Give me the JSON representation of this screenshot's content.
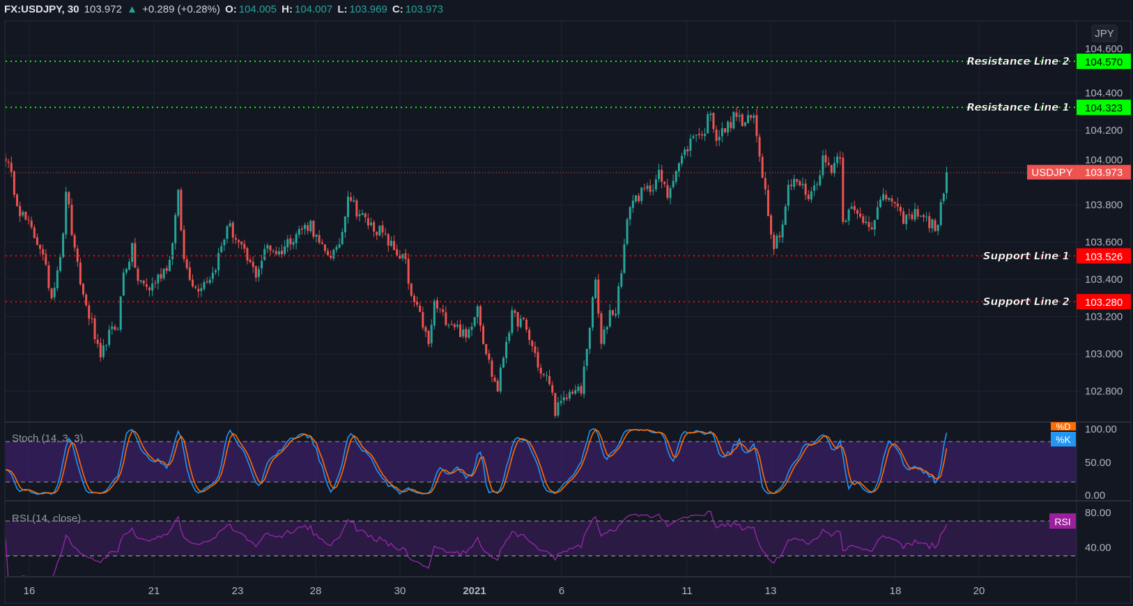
{
  "header": {
    "symbol": "FX:USDJPY, 30",
    "last": "103.972",
    "change": "+0.289 (+0.28%)",
    "o_label": "O:",
    "o": "104.005",
    "h_label": "H:",
    "h": "104.007",
    "l_label": "L:",
    "l": "103.969",
    "c_label": "C:",
    "c": "103.973"
  },
  "currency_button": "JPY",
  "colors": {
    "background": "#131722",
    "up": "#26a69a",
    "down": "#ef5350",
    "resistance": "#00ff00",
    "support": "#ff0000",
    "stoch_k": "#2196f3",
    "stoch_d": "#ff6d00",
    "rsi": "#9c27b0"
  },
  "levels": [
    {
      "label": "Resistance Line 2",
      "value": 104.57,
      "text": "104.570",
      "kind": "resistance"
    },
    {
      "label": "Resistance Line 1",
      "value": 104.323,
      "text": "104.323",
      "kind": "resistance"
    },
    {
      "label": "Support Line 1",
      "value": 103.526,
      "text": "103.526",
      "kind": "support"
    },
    {
      "label": "Support Line 2",
      "value": 103.28,
      "text": "103.280",
      "kind": "support"
    }
  ],
  "last_price_label": {
    "symbol": "USDJPY",
    "value": 103.973,
    "text": "103.973"
  },
  "indicators": {
    "stoch": {
      "title": "Stoch (14, 3, 3)",
      "k_label": "%K",
      "d_label": "%D",
      "ticks": [
        "100.00",
        "50.00",
        "0.00"
      ],
      "upper": 80,
      "lower": 20
    },
    "rsi": {
      "title": "RSI (14, close)",
      "label": "RSI",
      "ticks": [
        "80.00",
        "40.00"
      ],
      "upper": 70,
      "lower": 30
    }
  },
  "chart_data": {
    "type": "candlestick",
    "title": "FX:USDJPY, 30",
    "price_ticks": [
      "104.600",
      "104.400",
      "104.200",
      "104.000",
      "103.800",
      "103.600",
      "103.400",
      "103.200",
      "103.000",
      "102.800"
    ],
    "ylim": [
      102.63,
      104.78
    ],
    "x_tick_labels": [
      "16",
      "21",
      "23",
      "28",
      "30",
      "2021",
      "6",
      "11",
      "13",
      "18",
      "20"
    ],
    "last_close": 103.973,
    "price_keypoints": [
      [
        0,
        104.06
      ],
      [
        5,
        103.77
      ],
      [
        9,
        103.66
      ],
      [
        12,
        103.58
      ],
      [
        16,
        103.31
      ],
      [
        20,
        103.62
      ],
      [
        21,
        103.89
      ],
      [
        24,
        103.54
      ],
      [
        27,
        103.31
      ],
      [
        30,
        103.16
      ],
      [
        33,
        102.95
      ],
      [
        35,
        103.08
      ],
      [
        39,
        103.16
      ],
      [
        41,
        103.43
      ],
      [
        44,
        103.56
      ],
      [
        46,
        103.39
      ],
      [
        50,
        103.35
      ],
      [
        54,
        103.43
      ],
      [
        57,
        103.5
      ],
      [
        60,
        103.85
      ],
      [
        62,
        103.5
      ],
      [
        66,
        103.35
      ],
      [
        69,
        103.39
      ],
      [
        72,
        103.43
      ],
      [
        76,
        103.62
      ],
      [
        77,
        103.7
      ],
      [
        80,
        103.62
      ],
      [
        84,
        103.5
      ],
      [
        87,
        103.43
      ],
      [
        91,
        103.58
      ],
      [
        95,
        103.54
      ],
      [
        99,
        103.62
      ],
      [
        102,
        103.66
      ],
      [
        106,
        103.7
      ],
      [
        109,
        103.58
      ],
      [
        111,
        103.54
      ],
      [
        115,
        103.54
      ],
      [
        117,
        103.66
      ],
      [
        119,
        103.87
      ],
      [
        122,
        103.77
      ],
      [
        126,
        103.7
      ],
      [
        130,
        103.66
      ],
      [
        132,
        103.62
      ],
      [
        136,
        103.54
      ],
      [
        139,
        103.5
      ],
      [
        140,
        103.35
      ],
      [
        142,
        103.27
      ],
      [
        145,
        103.16
      ],
      [
        147,
        103.04
      ],
      [
        149,
        103.27
      ],
      [
        152,
        103.2
      ],
      [
        156,
        103.16
      ],
      [
        160,
        103.08
      ],
      [
        164,
        103.27
      ],
      [
        166,
        103.08
      ],
      [
        169,
        102.89
      ],
      [
        171,
        102.81
      ],
      [
        174,
        103.08
      ],
      [
        176,
        103.2
      ],
      [
        180,
        103.16
      ],
      [
        184,
        103.0
      ],
      [
        186,
        102.89
      ],
      [
        189,
        102.85
      ],
      [
        191,
        102.7
      ],
      [
        194,
        102.74
      ],
      [
        197,
        102.81
      ],
      [
        200,
        102.79
      ],
      [
        202,
        103.04
      ],
      [
        205,
        103.39
      ],
      [
        207,
        103.04
      ],
      [
        210,
        103.23
      ],
      [
        212,
        103.23
      ],
      [
        215,
        103.58
      ],
      [
        217,
        103.81
      ],
      [
        220,
        103.85
      ],
      [
        224,
        103.89
      ],
      [
        227,
        103.96
      ],
      [
        230,
        103.85
      ],
      [
        232,
        103.96
      ],
      [
        236,
        104.08
      ],
      [
        240,
        104.2
      ],
      [
        242,
        104.16
      ],
      [
        245,
        104.31
      ],
      [
        247,
        104.16
      ],
      [
        250,
        104.2
      ],
      [
        254,
        104.29
      ],
      [
        256,
        104.23
      ],
      [
        260,
        104.27
      ],
      [
        262,
        104.08
      ],
      [
        265,
        103.77
      ],
      [
        267,
        103.58
      ],
      [
        270,
        103.7
      ],
      [
        272,
        103.89
      ],
      [
        275,
        103.93
      ],
      [
        279,
        103.85
      ],
      [
        281,
        103.89
      ],
      [
        284,
        104.04
      ],
      [
        287,
        104.0
      ],
      [
        290,
        104.08
      ],
      [
        291,
        103.73
      ],
      [
        294,
        103.77
      ],
      [
        297,
        103.73
      ],
      [
        301,
        103.7
      ],
      [
        304,
        103.81
      ],
      [
        307,
        103.85
      ],
      [
        311,
        103.73
      ],
      [
        315,
        103.73
      ],
      [
        317,
        103.77
      ],
      [
        321,
        103.7
      ],
      [
        324,
        103.68
      ],
      [
        326,
        103.89
      ],
      [
        327,
        103.973
      ]
    ]
  }
}
